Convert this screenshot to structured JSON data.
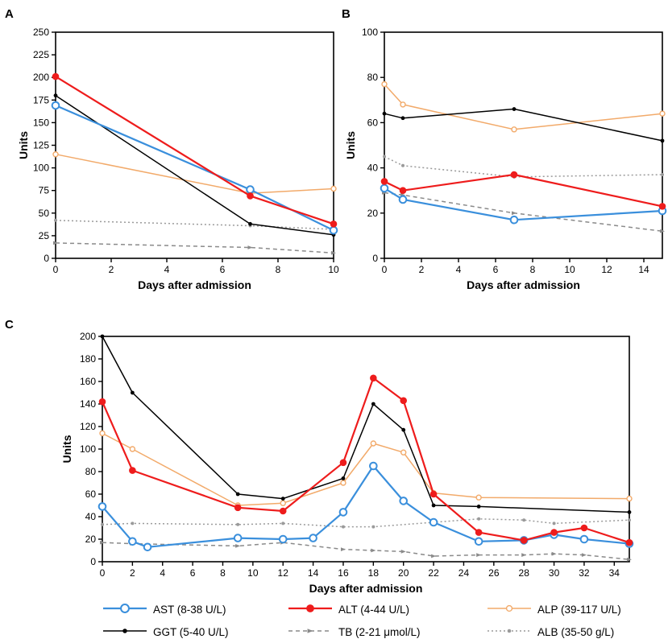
{
  "legend": [
    {
      "key": "AST",
      "label": "AST (8-38 U/L)"
    },
    {
      "key": "ALT",
      "label": "ALT (4-44 U/L)"
    },
    {
      "key": "ALP",
      "label": "ALP (39-117 U/L)"
    },
    {
      "key": "GGT",
      "label": "GGT (5-40 U/L)"
    },
    {
      "key": "TB",
      "label": "TB (2-21 μmol/L)"
    },
    {
      "key": "ALB",
      "label": "ALB (35-50 g/L)"
    }
  ],
  "styles": {
    "AST": {
      "color": "#3a8fdc",
      "marker": "open-circle",
      "dash": "solid"
    },
    "ALT": {
      "color": "#ee1c1c",
      "marker": "filled-circle",
      "dash": "solid"
    },
    "ALP": {
      "color": "#f2aa6a",
      "marker": "open-circle-small",
      "dash": "solid"
    },
    "GGT": {
      "color": "#000000",
      "marker": "filled-dot",
      "dash": "solid"
    },
    "TB": {
      "color": "#8a8a8a",
      "marker": "arrow",
      "dash": "dashed"
    },
    "ALB": {
      "color": "#9a9a9a",
      "marker": "dot",
      "dash": "dotted"
    }
  },
  "chart_data": [
    {
      "panel": "A",
      "type": "line",
      "xlabel": "Days after admission",
      "ylabel": "Units",
      "xlim": [
        0,
        10
      ],
      "ylim": [
        0,
        250
      ],
      "xticks": [
        0,
        2,
        4,
        6,
        8,
        10
      ],
      "yticks": [
        0,
        25,
        50,
        75,
        100,
        125,
        150,
        175,
        200,
        225,
        250
      ],
      "series": [
        {
          "name": "ALB",
          "x": [
            0,
            7,
            10
          ],
          "values": [
            42,
            36,
            32
          ]
        },
        {
          "name": "TB",
          "x": [
            0,
            7,
            10
          ],
          "values": [
            17,
            12,
            6
          ]
        },
        {
          "name": "ALP",
          "x": [
            0,
            7,
            10
          ],
          "values": [
            115,
            72,
            77
          ]
        },
        {
          "name": "GGT",
          "x": [
            0,
            7,
            10
          ],
          "values": [
            180,
            38,
            26
          ]
        },
        {
          "name": "AST",
          "x": [
            0,
            7,
            10
          ],
          "values": [
            169,
            76,
            31
          ]
        },
        {
          "name": "ALT",
          "x": [
            0,
            7,
            10
          ],
          "values": [
            201,
            69,
            38
          ]
        }
      ]
    },
    {
      "panel": "B",
      "type": "line",
      "xlabel": "Days after admission",
      "ylabel": "Units",
      "xlim": [
        0,
        15
      ],
      "ylim": [
        0,
        100
      ],
      "xticks": [
        0,
        2,
        4,
        6,
        8,
        10,
        12,
        14
      ],
      "yticks": [
        0,
        20,
        40,
        60,
        80,
        100
      ],
      "series": [
        {
          "name": "ALB",
          "x": [
            0,
            1,
            7,
            15
          ],
          "values": [
            45,
            41,
            36,
            37
          ]
        },
        {
          "name": "TB",
          "x": [
            0,
            1,
            7,
            15
          ],
          "values": [
            29,
            28,
            20,
            12
          ]
        },
        {
          "name": "ALP",
          "x": [
            0,
            1,
            7,
            15
          ],
          "values": [
            77,
            68,
            57,
            64
          ]
        },
        {
          "name": "GGT",
          "x": [
            0,
            1,
            7,
            15
          ],
          "values": [
            64,
            62,
            66,
            52
          ]
        },
        {
          "name": "AST",
          "x": [
            0,
            1,
            7,
            15
          ],
          "values": [
            31,
            26,
            17,
            21
          ]
        },
        {
          "name": "ALT",
          "x": [
            0,
            1,
            7,
            15
          ],
          "values": [
            34,
            30,
            37,
            23
          ]
        }
      ]
    },
    {
      "panel": "C",
      "type": "line",
      "xlabel": "Days after admission",
      "ylabel": "Units",
      "xlim": [
        0,
        35
      ],
      "ylim": [
        0,
        200
      ],
      "xticks": [
        0,
        2,
        4,
        6,
        8,
        10,
        12,
        14,
        16,
        18,
        20,
        22,
        24,
        26,
        28,
        30,
        32,
        34
      ],
      "yticks": [
        0,
        20,
        40,
        60,
        80,
        100,
        120,
        140,
        160,
        180,
        200
      ],
      "series": [
        {
          "name": "ALB",
          "x": [
            0,
            2,
            9,
            12,
            16,
            18,
            22,
            25,
            28,
            30,
            35
          ],
          "values": [
            33,
            34,
            33,
            34,
            31,
            31,
            35,
            38,
            37,
            34,
            37
          ]
        },
        {
          "name": "TB",
          "x": [
            0,
            2,
            9,
            12,
            16,
            18,
            20,
            22,
            25,
            28,
            30,
            32,
            35
          ],
          "values": [
            17,
            16,
            14,
            17,
            11,
            10,
            9,
            5,
            6,
            6,
            7,
            6,
            2
          ]
        },
        {
          "name": "ALP",
          "x": [
            0,
            2,
            9,
            12,
            16,
            18,
            20,
            22,
            25,
            35
          ],
          "values": [
            114,
            100,
            50,
            52,
            70,
            105,
            97,
            61,
            57,
            56
          ]
        },
        {
          "name": "GGT",
          "x": [
            0,
            2,
            9,
            12,
            16,
            18,
            20,
            22,
            25,
            35
          ],
          "values": [
            200,
            150,
            60,
            56,
            74,
            140,
            117,
            50,
            49,
            44
          ]
        },
        {
          "name": "AST",
          "x": [
            0,
            2,
            3,
            9,
            12,
            14,
            16,
            18,
            20,
            22,
            25,
            28,
            30,
            32,
            35
          ],
          "values": [
            49,
            18,
            13,
            21,
            20,
            21,
            44,
            85,
            54,
            35,
            18,
            19,
            24,
            20,
            16
          ]
        },
        {
          "name": "ALT",
          "x": [
            0,
            2,
            9,
            12,
            16,
            18,
            20,
            22,
            25,
            28,
            30,
            32,
            35
          ],
          "values": [
            142,
            81,
            48,
            45,
            88,
            163,
            143,
            60,
            26,
            19,
            26,
            30,
            17
          ]
        }
      ]
    }
  ]
}
